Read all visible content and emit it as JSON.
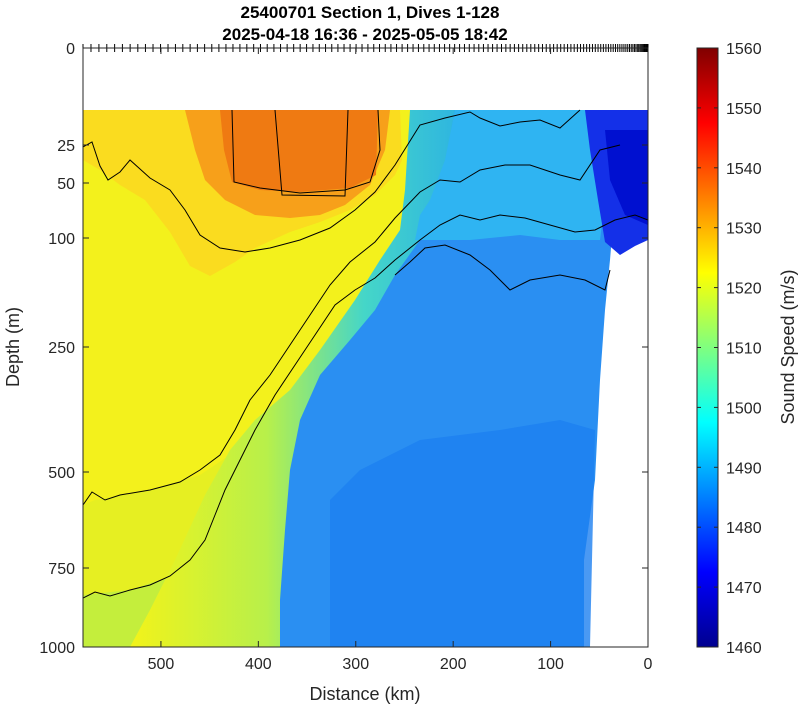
{
  "chart_data": {
    "type": "heatmap",
    "title": "25400701 Section 1, Dives 1-128",
    "subtitle": "2025-04-18 16:36 - 2025-05-05 18:42",
    "xlabel": "Distance (km)",
    "ylabel": "Depth (m)",
    "colorbar_label": "Sound Speed (m/s)",
    "x_ticks": [
      500,
      400,
      300,
      200,
      100,
      0
    ],
    "x_tick_labels": [
      "500",
      "400",
      "300",
      "200",
      "100",
      "0"
    ],
    "xlim": [
      580,
      0
    ],
    "y_ticks": [
      0,
      25,
      50,
      100,
      250,
      500,
      750,
      1000
    ],
    "y_tick_labels": [
      "0",
      "25",
      "50",
      "100",
      "250",
      "500",
      "750",
      "1000"
    ],
    "ylim": [
      0,
      1000
    ],
    "y_scale": "nonlinear",
    "colorbar_ticks": [
      1460,
      1470,
      1480,
      1490,
      1500,
      1510,
      1520,
      1530,
      1540,
      1550,
      1560
    ],
    "colorbar_tick_labels": [
      "1460",
      "1470",
      "1480",
      "1490",
      "1500",
      "1510",
      "1520",
      "1530",
      "1540",
      "1550",
      "1560"
    ],
    "clim": [
      1460,
      1560
    ],
    "colormap": "jet",
    "regions": [
      {
        "description": "warm core",
        "x_range": [
          450,
          280
        ],
        "depth_range": [
          15,
          70
        ],
        "sound_speed": 1536
      },
      {
        "description": "upper western water",
        "x_range": [
          580,
          260
        ],
        "depth_range": [
          15,
          500
        ],
        "sound_speed": 1525
      },
      {
        "description": "deep western water",
        "x_range": [
          580,
          420
        ],
        "depth_range": [
          500,
          1000
        ],
        "sound_speed": 1510
      },
      {
        "description": "frontal transition",
        "x_range": [
          450,
          250
        ],
        "depth_range": [
          50,
          1000
        ],
        "sound_speed": 1500
      },
      {
        "description": "eastern water",
        "x_range": [
          250,
          40
        ],
        "depth_range": [
          15,
          1000
        ],
        "sound_speed": 1488
      },
      {
        "description": "cold shelf water",
        "x_range": [
          70,
          0
        ],
        "depth_range": [
          15,
          110
        ],
        "sound_speed": 1470
      }
    ],
    "contour_color": "#000000",
    "dive_markers_count": 128
  }
}
